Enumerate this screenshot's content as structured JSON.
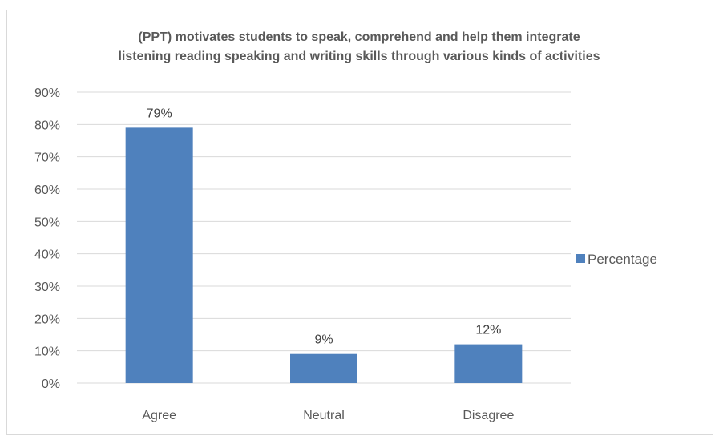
{
  "chart_data": {
    "type": "bar",
    "title_lines": [
      "(PPT) motivates students to speak, comprehend and help them integrate",
      "listening reading speaking and writing skills through various kinds of activities"
    ],
    "categories": [
      "Agree",
      "Neutral",
      "Disagree"
    ],
    "series": [
      {
        "name": "Percentage",
        "values": [
          79,
          9,
          12
        ],
        "labels": [
          "79%",
          "9%",
          "12%"
        ],
        "color": "#4f81bd"
      }
    ],
    "yticks": [
      "0%",
      "10%",
      "20%",
      "30%",
      "40%",
      "50%",
      "60%",
      "70%",
      "80%",
      "90%"
    ],
    "ylim": [
      0,
      90
    ],
    "grid": true,
    "gridColor": "#d9d9d9",
    "legend": "right"
  }
}
